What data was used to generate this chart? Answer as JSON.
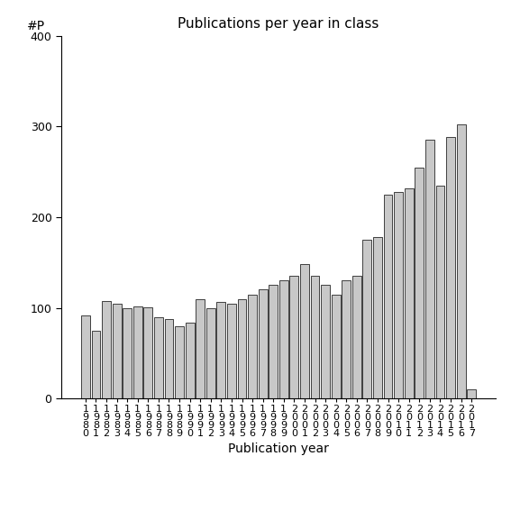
{
  "title": "Publications per year in class",
  "xlabel": "Publication year",
  "ylabel": "#P",
  "ylim": [
    0,
    400
  ],
  "yticks": [
    0,
    100,
    200,
    300,
    400
  ],
  "years": [
    "1980",
    "1981",
    "1982",
    "1983",
    "1984",
    "1985",
    "1986",
    "1987",
    "1988",
    "1989",
    "1990",
    "1991",
    "1992",
    "1993",
    "1994",
    "1995",
    "1996",
    "1997",
    "1998",
    "1999",
    "2000",
    "2001",
    "2002",
    "2003",
    "2004",
    "2005",
    "2006",
    "2007",
    "2008",
    "2009",
    "2010",
    "2011",
    "2012",
    "2013",
    "2014",
    "2015",
    "2016",
    "2017"
  ],
  "values": [
    92,
    75,
    108,
    105,
    100,
    102,
    101,
    90,
    88,
    80,
    84,
    110,
    100,
    107,
    105,
    110,
    115,
    120,
    125,
    130,
    135,
    148,
    135,
    125,
    115,
    130,
    135,
    175,
    178,
    225,
    228,
    232,
    255,
    285,
    235,
    288,
    302,
    10
  ],
  "bar_color": "#c8c8c8",
  "bar_edge_color": "#000000",
  "bar_edge_width": 0.5,
  "background_color": "#ffffff",
  "tick_label_fontsize": 8,
  "ytick_label_fontsize": 9,
  "axis_label_fontsize": 10,
  "title_fontsize": 11
}
